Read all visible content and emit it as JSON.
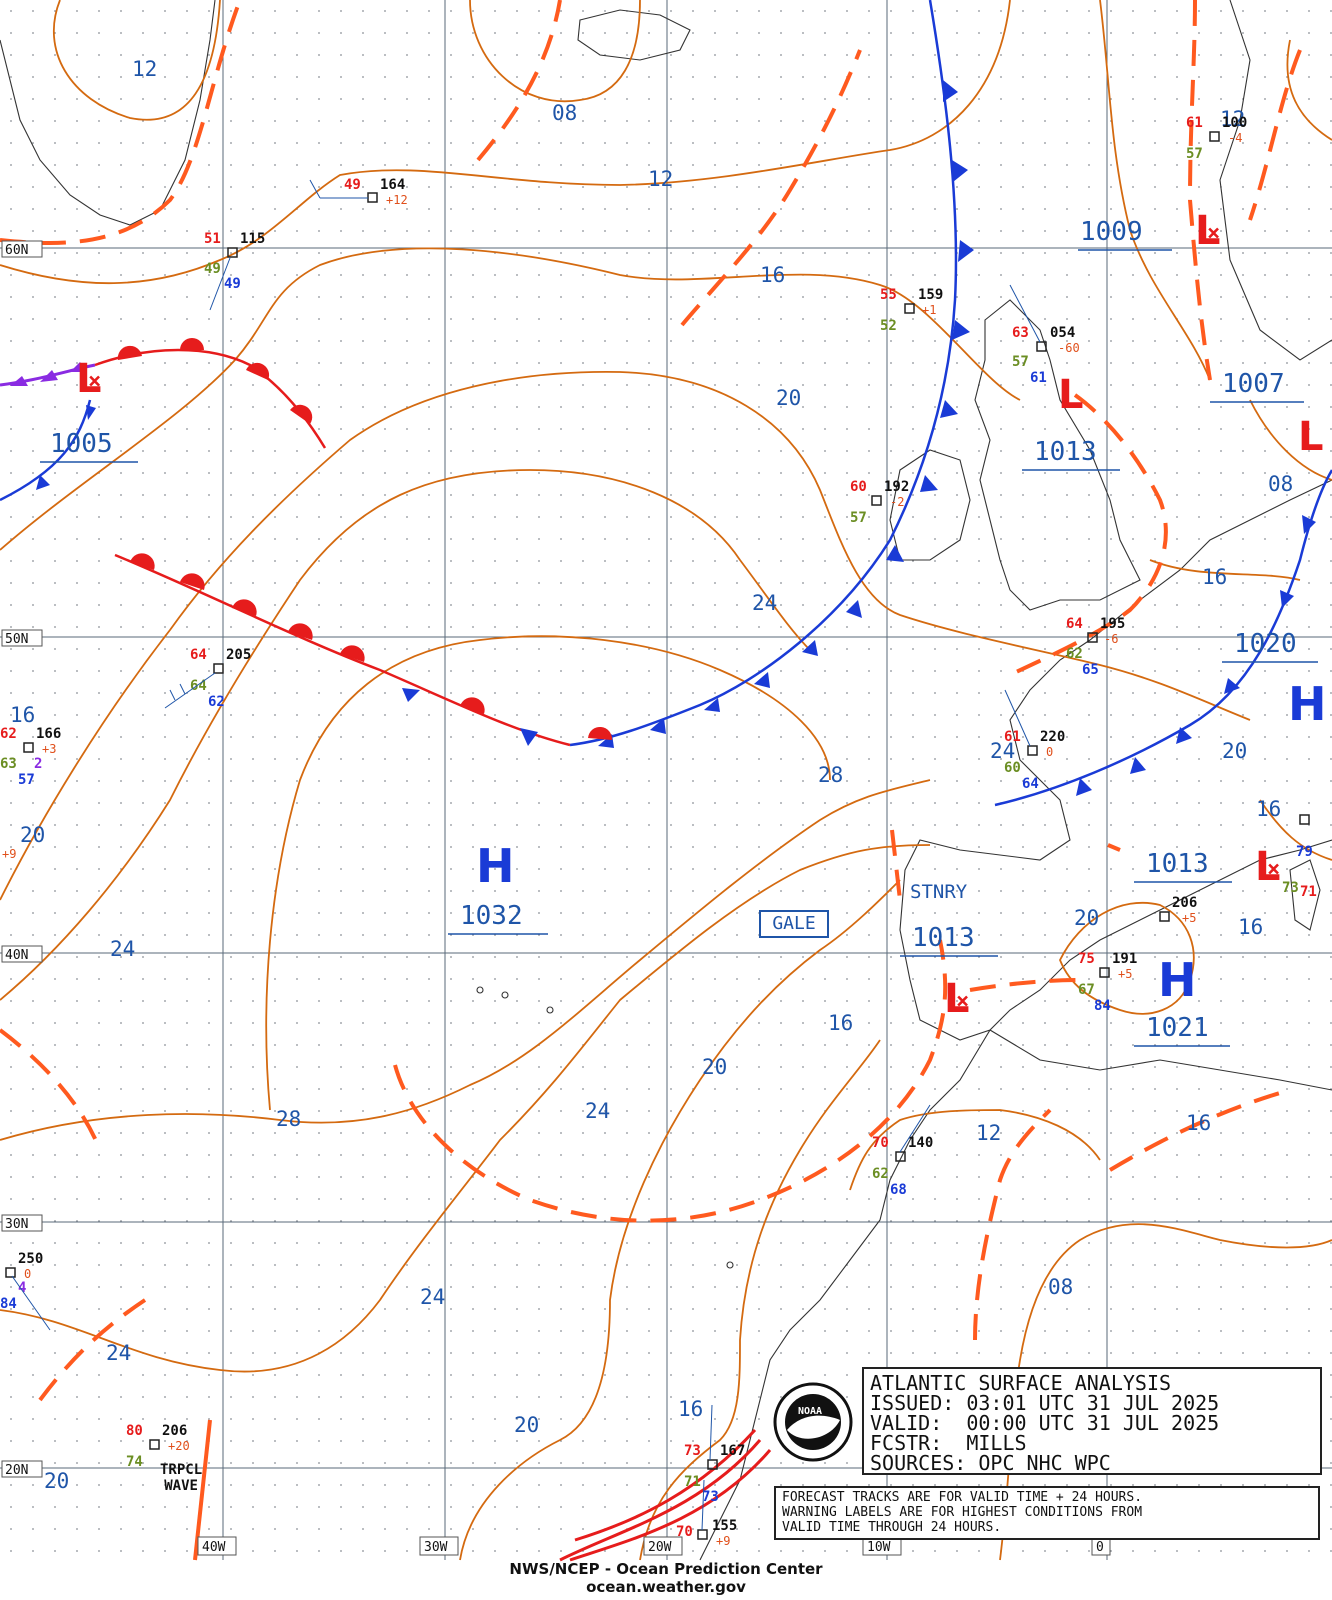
{
  "chart": {
    "title": "ATLANTIC SURFACE ANALYSIS",
    "issued": "ISSUED: 03:01 UTC 31 JUL 2025",
    "valid": "VALID:  00:00 UTC 31 JUL 2025",
    "forecaster": "FCSTR:  MILLS",
    "sources": "SOURCES: OPC NHC WPC"
  },
  "notes": {
    "line1": "FORECAST TRACKS ARE FOR VALID TIME + 24 HOURS.",
    "line2": "WARNING LABELS ARE FOR HIGHEST CONDITIONS FROM",
    "line3": "VALID TIME THROUGH 24 HOURS."
  },
  "footer": {
    "agency": "NWS/NCEP - Ocean Prediction Center",
    "website": "ocean.weather.gov"
  },
  "labels": {
    "gale": "GALE",
    "stationary": "STNRY",
    "tropical_wave_1": "TRPCL",
    "tropical_wave_2": "WAVE",
    "high_symbol": "H",
    "low_symbol": "L"
  },
  "grid": {
    "lat_labels": [
      "60N",
      "50N",
      "40N",
      "30N",
      "20N"
    ],
    "lon_labels": [
      "40W",
      "30W",
      "20W",
      "10W",
      "0"
    ]
  },
  "pressure_centers": [
    {
      "type": "H",
      "value": "1032"
    },
    {
      "type": "H",
      "value": "1021"
    },
    {
      "type": "H",
      "value": ""
    },
    {
      "type": "L",
      "value": "1005"
    },
    {
      "type": "L",
      "value": "1013"
    },
    {
      "type": "L",
      "value": "1009"
    },
    {
      "type": "L",
      "value": "1007"
    },
    {
      "type": "L",
      "value": "1013"
    },
    {
      "type": "L",
      "value": "1013"
    },
    {
      "type": "L",
      "value": "1020"
    }
  ],
  "isobar_labels": [
    "12",
    "08",
    "12",
    "16",
    "20",
    "24",
    "28",
    "16",
    "20",
    "24",
    "28",
    "24",
    "20",
    "16",
    "12",
    "08",
    "16",
    "24",
    "20",
    "24",
    "20",
    "16",
    "20",
    "24",
    "16",
    "12",
    "20",
    "16",
    "16",
    "08",
    "16"
  ],
  "stations": [
    {
      "t": "49",
      "p": "164",
      "tend": "+12"
    },
    {
      "t": "51",
      "p": "115",
      "d": "49",
      "dp": "49"
    },
    {
      "t": "55",
      "p": "159",
      "tend": "+1",
      "d": "52"
    },
    {
      "t": "63",
      "p": "054",
      "tend": "-60",
      "d": "57",
      "dp": "61"
    },
    {
      "t": "61",
      "p": "100",
      "tend": "-4",
      "d": "57"
    },
    {
      "t": "60",
      "p": "192",
      "tend": "-2",
      "d": "57"
    },
    {
      "t": "64",
      "p": "205",
      "d": "64",
      "dp": "62"
    },
    {
      "t": "62",
      "p": "166",
      "tend": "+3",
      "d": "63",
      "dp": "57",
      "x": "2"
    },
    {
      "t": "64",
      "p": "195",
      "tend": "-6",
      "d": "62",
      "dp": "65"
    },
    {
      "t": "61",
      "p": "220",
      "tend": "0",
      "d": "60",
      "dp": "64"
    },
    {
      "t": "75",
      "p": "191",
      "tend": "+5",
      "d": "67",
      "dp": "84"
    },
    {
      "t": "",
      "p": "206",
      "tend": "+5"
    },
    {
      "t": "70",
      "p": "140",
      "d": "62",
      "dp": "68"
    },
    {
      "t": "",
      "p": "250",
      "tend": "0",
      "d": "4",
      "dp": "84"
    },
    {
      "t": "80",
      "p": "206",
      "tend": "+20",
      "d": "74"
    },
    {
      "t": "73",
      "p": "167",
      "d": "71",
      "dp": "73"
    },
    {
      "t": "70",
      "p": "155",
      "tend": "+9"
    },
    {
      "t": "71",
      "p": "",
      "d": "73",
      "dp": "79"
    }
  ],
  "misc": {
    "tend_left": "+9"
  }
}
